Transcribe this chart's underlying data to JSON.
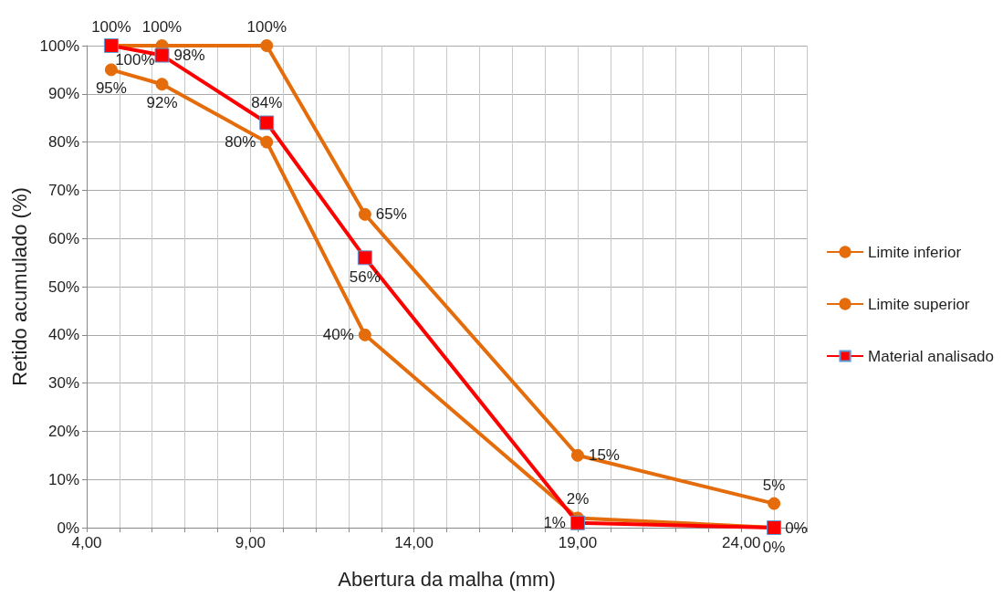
{
  "chart_data": {
    "type": "line",
    "xlabel": "Abertura da malha (mm)",
    "ylabel": "Retido acumulado (%)",
    "x": [
      4.75,
      6.3,
      9.5,
      12.5,
      19,
      25
    ],
    "series": [
      {
        "name": "Limite inferior",
        "color": "#e46c0a",
        "marker": "circle",
        "values": [
          95,
          92,
          80,
          40,
          2,
          0
        ],
        "value_labels": [
          "95%",
          "92%",
          "80%",
          "40%",
          "2%",
          "0%"
        ]
      },
      {
        "name": "Limite superior",
        "color": "#e46c0a",
        "marker": "circle",
        "values": [
          100,
          100,
          100,
          65,
          15,
          5
        ],
        "value_labels": [
          "100%",
          "100%",
          "100%",
          "65%",
          "15%",
          "5%"
        ]
      },
      {
        "name": "Material analisado",
        "color": "#ff0000",
        "marker": "square",
        "values": [
          100,
          98,
          84,
          56,
          1,
          0
        ],
        "value_labels": [
          "100%",
          "98%",
          "84%",
          "56%",
          "1%",
          "0%"
        ]
      }
    ],
    "xlim": [
      4,
      26
    ],
    "xticks": [
      {
        "value": 4,
        "label": "4,00"
      },
      {
        "value": 5,
        "label": null
      },
      {
        "value": 6,
        "label": null
      },
      {
        "value": 7,
        "label": null
      },
      {
        "value": 8,
        "label": null
      },
      {
        "value": 9,
        "label": "9,00"
      },
      {
        "value": 10,
        "label": null
      },
      {
        "value": 11,
        "label": null
      },
      {
        "value": 12,
        "label": null
      },
      {
        "value": 13,
        "label": null
      },
      {
        "value": 14,
        "label": "14,00"
      },
      {
        "value": 15,
        "label": null
      },
      {
        "value": 16,
        "label": null
      },
      {
        "value": 17,
        "label": null
      },
      {
        "value": 18,
        "label": null
      },
      {
        "value": 19,
        "label": "19,00"
      },
      {
        "value": 20,
        "label": null
      },
      {
        "value": 21,
        "label": null
      },
      {
        "value": 22,
        "label": null
      },
      {
        "value": 23,
        "label": null
      },
      {
        "value": 24,
        "label": "24,00"
      },
      {
        "value": 25,
        "label": null
      },
      {
        "value": 26,
        "label": null
      }
    ],
    "ylim": [
      0,
      100
    ],
    "yticks": [
      {
        "value": 0,
        "label": "0%"
      },
      {
        "value": 10,
        "label": "10%"
      },
      {
        "value": 20,
        "label": "20%"
      },
      {
        "value": 30,
        "label": "30%"
      },
      {
        "value": 40,
        "label": "40%"
      },
      {
        "value": 50,
        "label": "50%"
      },
      {
        "value": 60,
        "label": "60%"
      },
      {
        "value": 70,
        "label": "70%"
      },
      {
        "value": 80,
        "label": "80%"
      },
      {
        "value": 90,
        "label": "90%"
      },
      {
        "value": 100,
        "label": "100%"
      }
    ],
    "grid": true,
    "legend": "right",
    "line_style": "solid"
  }
}
